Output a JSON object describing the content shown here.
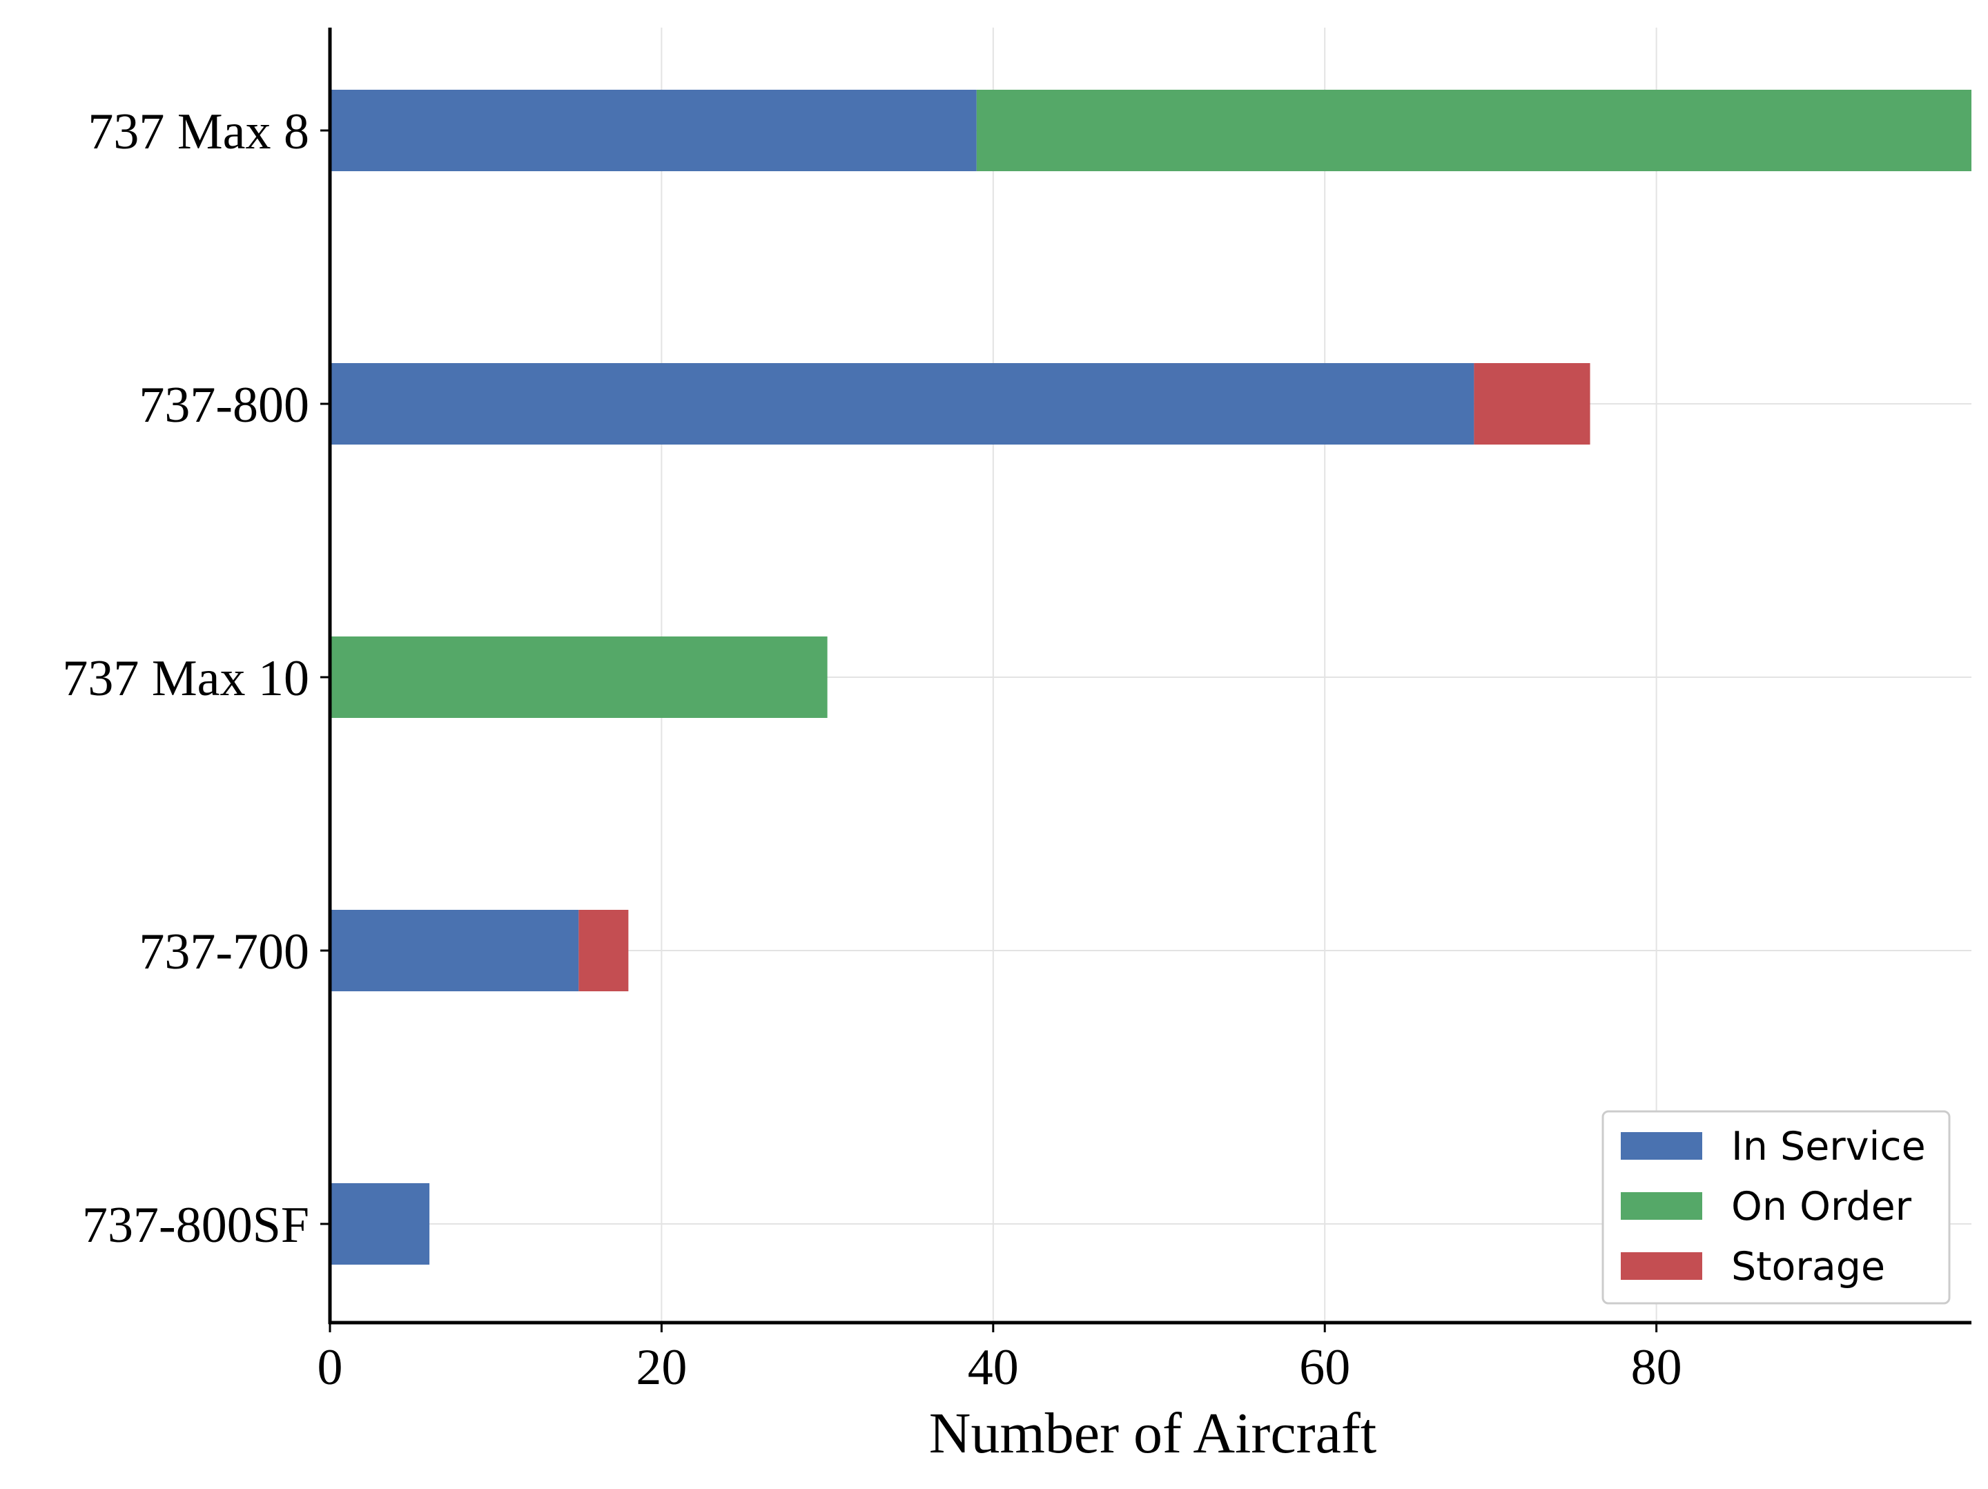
{
  "chart_data": {
    "type": "bar",
    "orientation": "horizontal",
    "stacked": true,
    "title": "",
    "xlabel": "Number of Aircraft",
    "ylabel": "",
    "xlim": [
      0,
      99
    ],
    "xticks": [
      0,
      20,
      40,
      60,
      80
    ],
    "grid": true,
    "legend_position": "bottom-right",
    "categories": [
      "737 Max 8",
      "737-800",
      "737 Max 10",
      "737-700",
      "737-800SF"
    ],
    "series": [
      {
        "name": "In Service",
        "color": "#4a72b0",
        "values": [
          39,
          69,
          0,
          15,
          6
        ]
      },
      {
        "name": "On Order",
        "color": "#55a868",
        "values": [
          60,
          0,
          30,
          0,
          0
        ]
      },
      {
        "name": "Storage",
        "color": "#c44e52",
        "values": [
          0,
          7,
          0,
          3,
          0
        ]
      }
    ]
  }
}
